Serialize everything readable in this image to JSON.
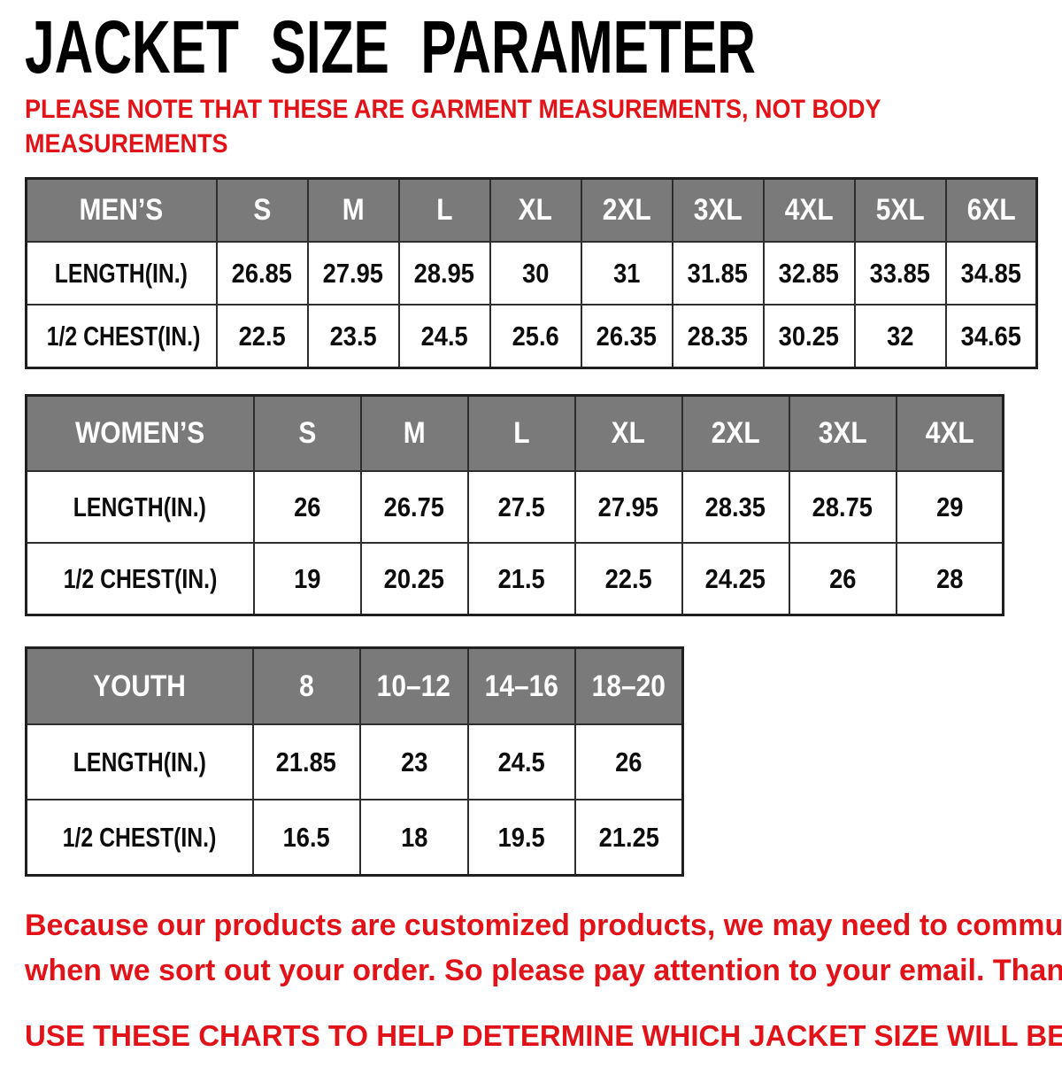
{
  "header": {
    "title": "JACKET SIZE PARAMETER",
    "note_lines": [
      "PLEASE NOTE THAT THESE ARE GARMENT MEASUREMENTS, NOT BODY",
      "MEASUREMENTS"
    ]
  },
  "colors": {
    "accent_red": "#e21318",
    "table_header_gray": "#7a7a7a",
    "border": "#1f1f1f"
  },
  "tables": [
    {
      "name": "MEN’S",
      "sizes": [
        "S",
        "M",
        "L",
        "XL",
        "2XL",
        "3XL",
        "4XL",
        "5XL",
        "6XL"
      ],
      "rows": [
        {
          "label": "LENGTH(IN.)",
          "values": [
            "26.85",
            "27.95",
            "28.95",
            "30",
            "31",
            "31.85",
            "32.85",
            "33.85",
            "34.85"
          ]
        },
        {
          "label": "1/2 CHEST(IN.)",
          "values": [
            "22.5",
            "23.5",
            "24.5",
            "25.6",
            "26.35",
            "28.35",
            "30.25",
            "32",
            "34.65"
          ]
        }
      ]
    },
    {
      "name": "WOMEN’S",
      "sizes": [
        "S",
        "M",
        "L",
        "XL",
        "2XL",
        "3XL",
        "4XL"
      ],
      "rows": [
        {
          "label": "LENGTH(IN.)",
          "values": [
            "26",
            "26.75",
            "27.5",
            "27.95",
            "28.35",
            "28.75",
            "29"
          ]
        },
        {
          "label": "1/2 CHEST(IN.)",
          "values": [
            "19",
            "20.25",
            "21.5",
            "22.5",
            "24.25",
            "26",
            "28"
          ]
        }
      ]
    },
    {
      "name": "YOUTH",
      "sizes": [
        "8",
        "10–12",
        "14–16",
        "18–20"
      ],
      "rows": [
        {
          "label": "LENGTH(IN.)",
          "values": [
            "21.85",
            "23",
            "24.5",
            "26"
          ]
        },
        {
          "label": "1/2 CHEST(IN.)",
          "values": [
            "16.5",
            "18",
            "19.5",
            "21.25"
          ]
        }
      ]
    }
  ],
  "footer": {
    "para1_lines": [
      "Because our products are customized products, we may need to communicate with you",
      "when we sort out your order. So please pay attention to your email. Thank You !"
    ],
    "para2_lines": [
      "USE THESE CHARTS TO HELP DETERMINE WHICH JACKET SIZE WILL BEST FIT YOU."
    ]
  }
}
